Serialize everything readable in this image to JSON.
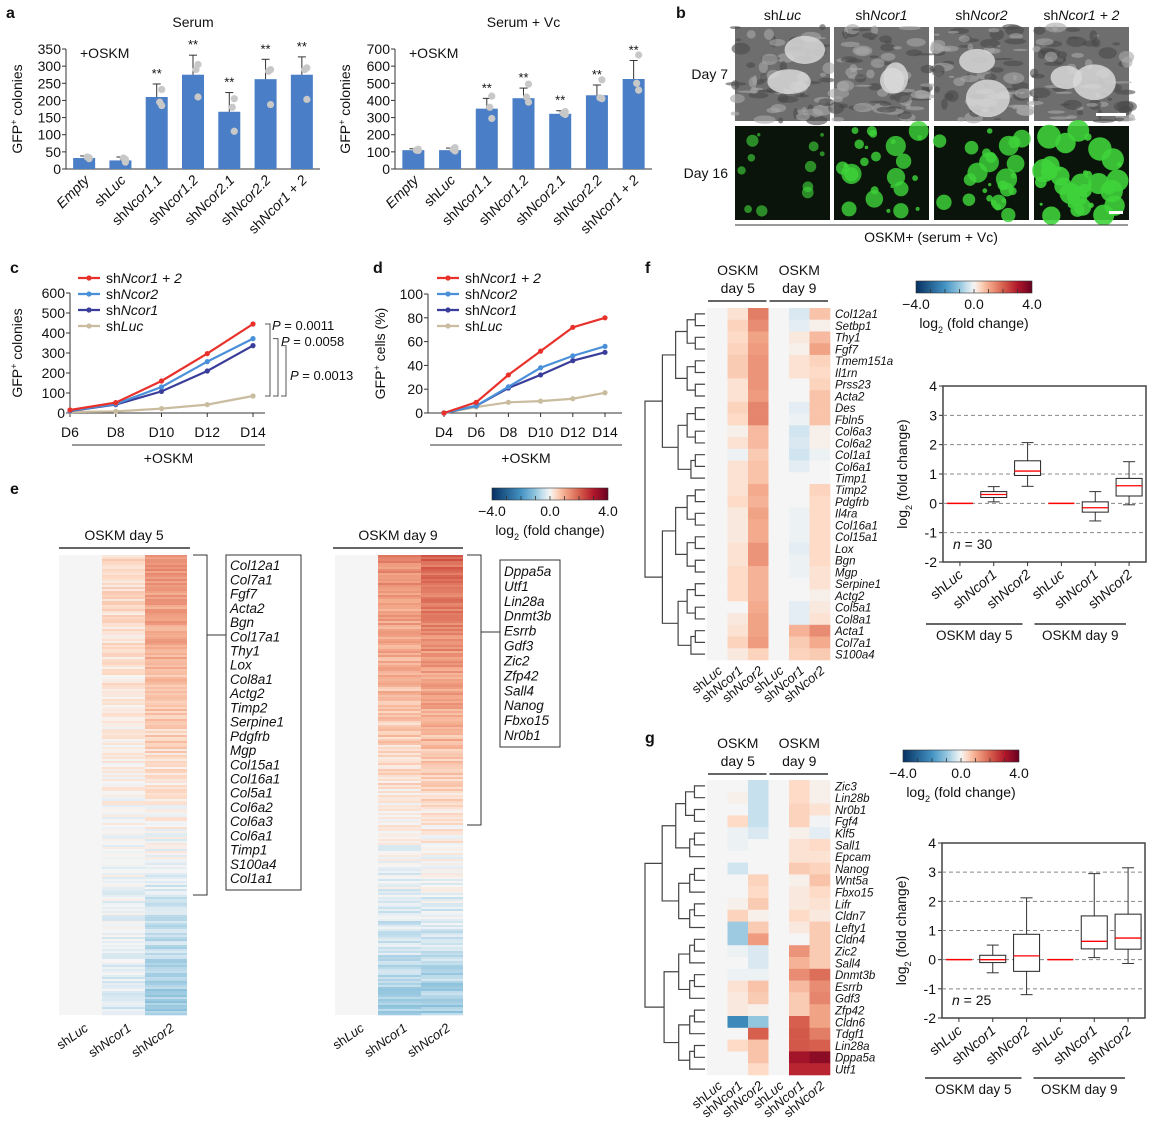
{
  "panel_letters": {
    "a": "a",
    "b": "b",
    "c": "c",
    "d": "d",
    "e": "e",
    "f": "f",
    "g": "g"
  },
  "colors": {
    "bar": "#4a7ec6",
    "points": "#c8c8c8",
    "shNcor1_2": "#e8312a",
    "shNcor2": "#4a90d9",
    "shNcor1": "#3a3d9a",
    "shLuc": "#c9bc9f",
    "median": "#ff0000"
  },
  "chart_data": [
    {
      "id": "a_serum",
      "type": "bar",
      "title": "Serum",
      "annotation": "+OSKM",
      "ylabel": "GFP+ colonies",
      "ylim": [
        0,
        350
      ],
      "yticks": [
        0,
        50,
        100,
        150,
        200,
        250,
        300,
        350
      ],
      "categories": [
        "Empty",
        "shLuc",
        "shNcor1.1",
        "shNcor1.2",
        "shNcor2.1",
        "shNcor2.2",
        "shNcor1 + 2"
      ],
      "values": [
        32,
        25,
        210,
        275,
        167,
        262,
        275
      ],
      "error_upper": [
        38,
        35,
        248,
        332,
        223,
        320,
        327
      ],
      "points": [
        [
          33,
          35,
          30
        ],
        [
          28,
          32,
          20
        ],
        [
          232,
          195,
          185
        ],
        [
          305,
          290,
          210
        ],
        [
          205,
          180,
          110
        ],
        [
          290,
          285,
          188
        ],
        [
          295,
          290,
          203
        ]
      ],
      "significance": [
        "",
        "",
        "**",
        "**",
        "**",
        "**",
        "**"
      ]
    },
    {
      "id": "a_serum_vc",
      "type": "bar",
      "title": "Serum + Vc",
      "annotation": "+OSKM",
      "ylabel": "GFP+ colonies",
      "ylim": [
        0,
        700
      ],
      "yticks": [
        0,
        100,
        200,
        300,
        400,
        500,
        600,
        700
      ],
      "categories": [
        "Empty",
        "shLuc",
        "shNcor1.1",
        "shNcor1.2",
        "shNcor2.1",
        "shNcor2.2",
        "shNcor1 + 2"
      ],
      "values": [
        110,
        110,
        352,
        413,
        322,
        430,
        525
      ],
      "error_upper": [
        118,
        122,
        412,
        472,
        340,
        490,
        633
      ],
      "points": [
        [
          115,
          110,
          108
        ],
        [
          125,
          115,
          105
        ],
        [
          425,
          360,
          295
        ],
        [
          495,
          420,
          390
        ],
        [
          335,
          325,
          318
        ],
        [
          520,
          415,
          410
        ],
        [
          665,
          500,
          460
        ]
      ],
      "significance": [
        "",
        "",
        "**",
        "**",
        "**",
        "**",
        "**"
      ]
    },
    {
      "id": "c",
      "type": "line",
      "ylabel": "GFP+ colonies",
      "xlabel_group": "+OSKM",
      "x": [
        "D6",
        "D8",
        "D10",
        "D12",
        "D14"
      ],
      "ylim": [
        0,
        600
      ],
      "yticks": [
        0,
        100,
        200,
        300,
        400,
        500,
        600
      ],
      "legend_position": "top-left",
      "series": [
        {
          "name": "shNcor1 + 2",
          "color_key": "shNcor1_2",
          "values": [
            15,
            52,
            160,
            297,
            445
          ]
        },
        {
          "name": "shNcor2",
          "color_key": "shNcor2",
          "values": [
            12,
            45,
            130,
            257,
            372
          ]
        },
        {
          "name": "shNcor1",
          "color_key": "shNcor1",
          "values": [
            10,
            42,
            108,
            210,
            337
          ]
        },
        {
          "name": "shLuc",
          "color_key": "shLuc",
          "values": [
            5,
            8,
            22,
            42,
            85
          ]
        }
      ],
      "annotations": [
        "P = 0.0011",
        "P = 0.0058",
        "P = 0.0013"
      ]
    },
    {
      "id": "d",
      "type": "line",
      "ylabel": "GFP+ cells (%)",
      "xlabel_group": "+OSKM",
      "x": [
        "D4",
        "D6",
        "D8",
        "D10",
        "D12",
        "D14"
      ],
      "ylim": [
        0,
        100
      ],
      "yticks": [
        0,
        20,
        40,
        60,
        80,
        100
      ],
      "legend_position": "top-left",
      "series": [
        {
          "name": "shNcor1 + 2",
          "color_key": "shNcor1_2",
          "values": [
            0,
            9,
            32,
            52,
            72,
            80
          ]
        },
        {
          "name": "shNcor2",
          "color_key": "shNcor2",
          "values": [
            0,
            6,
            22,
            38,
            48,
            56
          ]
        },
        {
          "name": "shNcor1",
          "color_key": "shNcor1",
          "values": [
            0,
            6,
            21,
            32,
            44,
            51
          ]
        },
        {
          "name": "shLuc",
          "color_key": "shLuc",
          "values": [
            0,
            5,
            9,
            10,
            12,
            17
          ]
        }
      ]
    },
    {
      "id": "e",
      "type": "heatmap",
      "groups": [
        "OSKM day 5",
        "OSKM day 9"
      ],
      "columns": [
        "shLuc",
        "shNcor1",
        "shNcor2"
      ],
      "colorbar": {
        "min": -4.0,
        "max": 4.0,
        "ticks": [
          "−4.0",
          "0.0",
          "4.0"
        ],
        "label": "log2 (fold change)"
      },
      "highlight_genes_day5": [
        "Col12a1",
        "Col7a1",
        "Fgf7",
        "Acta2",
        "Bgn",
        "Col17a1",
        "Thy1",
        "Lox",
        "Col8a1",
        "Actg2",
        "Timp2",
        "Serpine1",
        "Pdgfrb",
        "Mgp",
        "Col15a1",
        "Col16a1",
        "Col5a1",
        "Col6a2",
        "Col6a3",
        "Col6a1",
        "Timp1",
        "S100a4",
        "Col1a1"
      ],
      "highlight_genes_day9": [
        "Dppa5a",
        "Utf1",
        "Lin28a",
        "Dnmt3b",
        "Esrrb",
        "Gdf3",
        "Zic2",
        "Zfp42",
        "Sall4",
        "Nanog",
        "Fbxo15",
        "Nr0b1"
      ]
    },
    {
      "id": "f_heatmap",
      "type": "heatmap",
      "groups": [
        "OSKM day 5",
        "OSKM day 9"
      ],
      "columns": [
        "shLuc",
        "shNcor1",
        "shNcor2",
        "shLuc",
        "shNcor1",
        "shNcor2"
      ],
      "colorbar": {
        "min": -4.0,
        "max": 4.0,
        "ticks": [
          "−4.0",
          "0.0",
          "4.0"
        ],
        "label": "log2 (fold change)"
      },
      "rows": [
        "Col12a1",
        "Setbp1",
        "Thy1",
        "Fgf7",
        "Tmem151a",
        "Il1rn",
        "Prss23",
        "Acta2",
        "Des",
        "Fbln5",
        "Col6a3",
        "Col6a2",
        "Col1a1",
        "Col6a1",
        "Timp1",
        "Timp2",
        "Pdgfrb",
        "Il4ra",
        "Col16a1",
        "Col15a1",
        "Lox",
        "Bgn",
        "Mgp",
        "Serpine1",
        "Actg2",
        "Col5a1",
        "Col8a1",
        "Acta1",
        "Col7a1",
        "S100a4"
      ],
      "values": [
        [
          0,
          0.3,
          1.6,
          0,
          -0.3,
          0.7
        ],
        [
          0,
          0.5,
          1.4,
          0,
          -0.2,
          0.1
        ],
        [
          0,
          0.4,
          1.1,
          0,
          0.2,
          0.8
        ],
        [
          0,
          0.5,
          1.2,
          0,
          0.1,
          1.1
        ],
        [
          0,
          0.6,
          1.3,
          0,
          0.3,
          0.5
        ],
        [
          0,
          0.6,
          1.3,
          0,
          0.3,
          0.4
        ],
        [
          0,
          0.3,
          1.3,
          0,
          0,
          0.5
        ],
        [
          0,
          0.3,
          1.2,
          0,
          0,
          0.7
        ],
        [
          0,
          0.5,
          1.5,
          0,
          -0.2,
          0.7
        ],
        [
          0,
          0.4,
          1.5,
          0,
          -0.1,
          0.7
        ],
        [
          0,
          0.1,
          0.8,
          0,
          -0.4,
          0.1
        ],
        [
          0,
          0.3,
          0.8,
          0,
          -0.3,
          0.1
        ],
        [
          0,
          -0.1,
          0.6,
          0,
          -0.4,
          -0.1
        ],
        [
          0,
          0.3,
          0.7,
          0,
          -0.2,
          0
        ],
        [
          0,
          0.3,
          0.7,
          0,
          0,
          0
        ],
        [
          0,
          0.3,
          1.0,
          0,
          0,
          0.5
        ],
        [
          0,
          0.4,
          0.9,
          0,
          0,
          0.4
        ],
        [
          0,
          0.2,
          1.1,
          0,
          -0.1,
          0.4
        ],
        [
          0,
          0.2,
          1.0,
          0,
          -0.1,
          0.4
        ],
        [
          0,
          0.2,
          1.0,
          0,
          -0.1,
          0.4
        ],
        [
          0,
          0.3,
          1.3,
          0,
          -0.2,
          0.4
        ],
        [
          0,
          0.3,
          1.3,
          0,
          -0.1,
          0.4
        ],
        [
          0,
          0.4,
          0.9,
          0,
          -0.1,
          0.3
        ],
        [
          0,
          0.4,
          0.9,
          0,
          0,
          0.3
        ],
        [
          0,
          0.4,
          0.9,
          0,
          0,
          0.1
        ],
        [
          0,
          0,
          1.0,
          0,
          -0.2,
          0.2
        ],
        [
          0,
          0.2,
          1.1,
          0,
          -0.2,
          0.3
        ],
        [
          0,
          0.3,
          1.1,
          0,
          0.9,
          1.4
        ],
        [
          0,
          0.5,
          1.2,
          0,
          0.6,
          1.0
        ],
        [
          0,
          0.2,
          0.5,
          0,
          0.5,
          0.6
        ]
      ]
    },
    {
      "id": "f_box",
      "type": "box",
      "ylabel": "log2 (fold change)",
      "ylim": [
        -2,
        4
      ],
      "yticks": [
        -2,
        -1,
        0,
        1,
        2,
        3,
        4
      ],
      "grid": "dashed-horizontal",
      "annotation": "n = 30",
      "categories": [
        "shLuc",
        "shNcor1",
        "shNcor2",
        "shLuc",
        "shNcor1",
        "shNcor2"
      ],
      "groups": [
        "OSKM day 5",
        "OSKM day 9"
      ],
      "boxes": [
        {
          "min": 0,
          "q1": 0,
          "median": 0,
          "q3": 0,
          "max": 0
        },
        {
          "min": 0.05,
          "q1": 0.2,
          "median": 0.3,
          "q3": 0.4,
          "max": 0.57
        },
        {
          "min": 0.58,
          "q1": 0.95,
          "median": 1.1,
          "q3": 1.45,
          "max": 2.07
        },
        {
          "min": 0,
          "q1": 0,
          "median": 0,
          "q3": 0,
          "max": 0
        },
        {
          "min": -0.6,
          "q1": -0.3,
          "median": -0.15,
          "q3": 0.05,
          "max": 0.4
        },
        {
          "min": -0.05,
          "q1": 0.25,
          "median": 0.6,
          "q3": 0.85,
          "max": 1.42
        }
      ]
    },
    {
      "id": "g_heatmap",
      "type": "heatmap",
      "groups": [
        "OSKM day 5",
        "OSKM day 9"
      ],
      "columns": [
        "shLuc",
        "shNcor1",
        "shNcor2",
        "shLuc",
        "shNcor1",
        "shNcor2"
      ],
      "colorbar": {
        "min": -4.0,
        "max": 4.0,
        "ticks": [
          "−4.0",
          "0.0",
          "4.0"
        ],
        "label": "log2 (fold change)"
      },
      "rows": [
        "Zic3",
        "Lin28b",
        "Nr0b1",
        "Fgf4",
        "Klf5",
        "Sall1",
        "Epcam",
        "Nanog",
        "Wnt5a",
        "Fbxo15",
        "Lifr",
        "Cldn7",
        "Lefty1",
        "Cldn4",
        "Zic2",
        "Sall4",
        "Dnmt3b",
        "Esrrb",
        "Gdf3",
        "Zfp42",
        "Cldn6",
        "Tdgf1",
        "Lin28a",
        "Dppa5a",
        "Utf1"
      ],
      "values": [
        [
          0,
          0,
          -0.5,
          0,
          0.4,
          0.1
        ],
        [
          0,
          0.1,
          -0.5,
          0,
          0.4,
          0.1
        ],
        [
          0,
          0,
          -0.5,
          0,
          0.5,
          0.3
        ],
        [
          0,
          0.4,
          -0.5,
          0,
          0.5,
          -0.05
        ],
        [
          0,
          -0.1,
          -0.3,
          0,
          0.1,
          -0.2
        ],
        [
          0,
          -0.1,
          0,
          0,
          0.3,
          0.4
        ],
        [
          0,
          0,
          0,
          0,
          0.3,
          0.3
        ],
        [
          0,
          -0.4,
          0,
          0,
          0.6,
          0.5
        ],
        [
          0,
          0,
          0.5,
          0,
          0.1,
          0.7
        ],
        [
          0,
          0,
          0.4,
          0,
          0.2,
          0.4
        ],
        [
          0,
          0.1,
          0.6,
          0,
          0.2,
          0.3
        ],
        [
          0,
          0.5,
          0.1,
          0,
          0.4,
          0.2
        ],
        [
          0,
          -0.9,
          0.6,
          0,
          0.2,
          0.6
        ],
        [
          0,
          -0.9,
          1.2,
          0,
          0,
          0.6
        ],
        [
          0,
          -0.1,
          -0.3,
          0,
          1.3,
          0.6
        ],
        [
          0,
          0,
          -0.3,
          0,
          0.9,
          0.6
        ],
        [
          0,
          -0.1,
          -0.1,
          0,
          1.4,
          1.8
        ],
        [
          0,
          0.3,
          0.7,
          0,
          0.8,
          1.4
        ],
        [
          0,
          0.2,
          0.6,
          0,
          0.6,
          1.5
        ],
        [
          0,
          0.2,
          0.1,
          0,
          0.6,
          1.1
        ],
        [
          0,
          -2.2,
          -1.0,
          0,
          2.0,
          1.1
        ],
        [
          0,
          0,
          2.0,
          0,
          2.1,
          1.6
        ],
        [
          0,
          0.4,
          0.7,
          0,
          2.1,
          2.0
        ],
        [
          0,
          0,
          0.7,
          0,
          3.2,
          3.5
        ],
        [
          0,
          0,
          0.4,
          0,
          2.8,
          2.8
        ]
      ]
    },
    {
      "id": "g_box",
      "type": "box",
      "ylabel": "log2 (fold change)",
      "ylim": [
        -2,
        4
      ],
      "yticks": [
        -2,
        -1,
        0,
        1,
        2,
        3,
        4
      ],
      "grid": "dashed-horizontal",
      "annotation": "n = 25",
      "categories": [
        "shLuc",
        "shNcor1",
        "shNcor2",
        "shLuc",
        "shNcor1",
        "shNcor2"
      ],
      "groups": [
        "OSKM day 5",
        "OSKM day 9"
      ],
      "boxes": [
        {
          "min": 0,
          "q1": 0,
          "median": 0,
          "q3": 0,
          "max": 0
        },
        {
          "min": -0.45,
          "q1": -0.1,
          "median": 0,
          "q3": 0.15,
          "max": 0.5
        },
        {
          "min": -1.2,
          "q1": -0.4,
          "median": 0.13,
          "q3": 0.87,
          "max": 2.12
        },
        {
          "min": 0,
          "q1": 0,
          "median": 0,
          "q3": 0,
          "max": 0
        },
        {
          "min": 0.07,
          "q1": 0.37,
          "median": 0.63,
          "q3": 1.5,
          "max": 2.95
        },
        {
          "min": -0.13,
          "q1": 0.36,
          "median": 0.74,
          "q3": 1.56,
          "max": 3.15
        }
      ]
    }
  ],
  "panel_b": {
    "columns": [
      "shLuc",
      "shNcor1",
      "shNcor2",
      "shNcor1 + 2"
    ],
    "rows": [
      "Day 7",
      "Day 16"
    ],
    "caption": "OSKM+ (serum + Vc)",
    "gfp_density": [
      0.2,
      0.65,
      0.7,
      0.85
    ]
  }
}
